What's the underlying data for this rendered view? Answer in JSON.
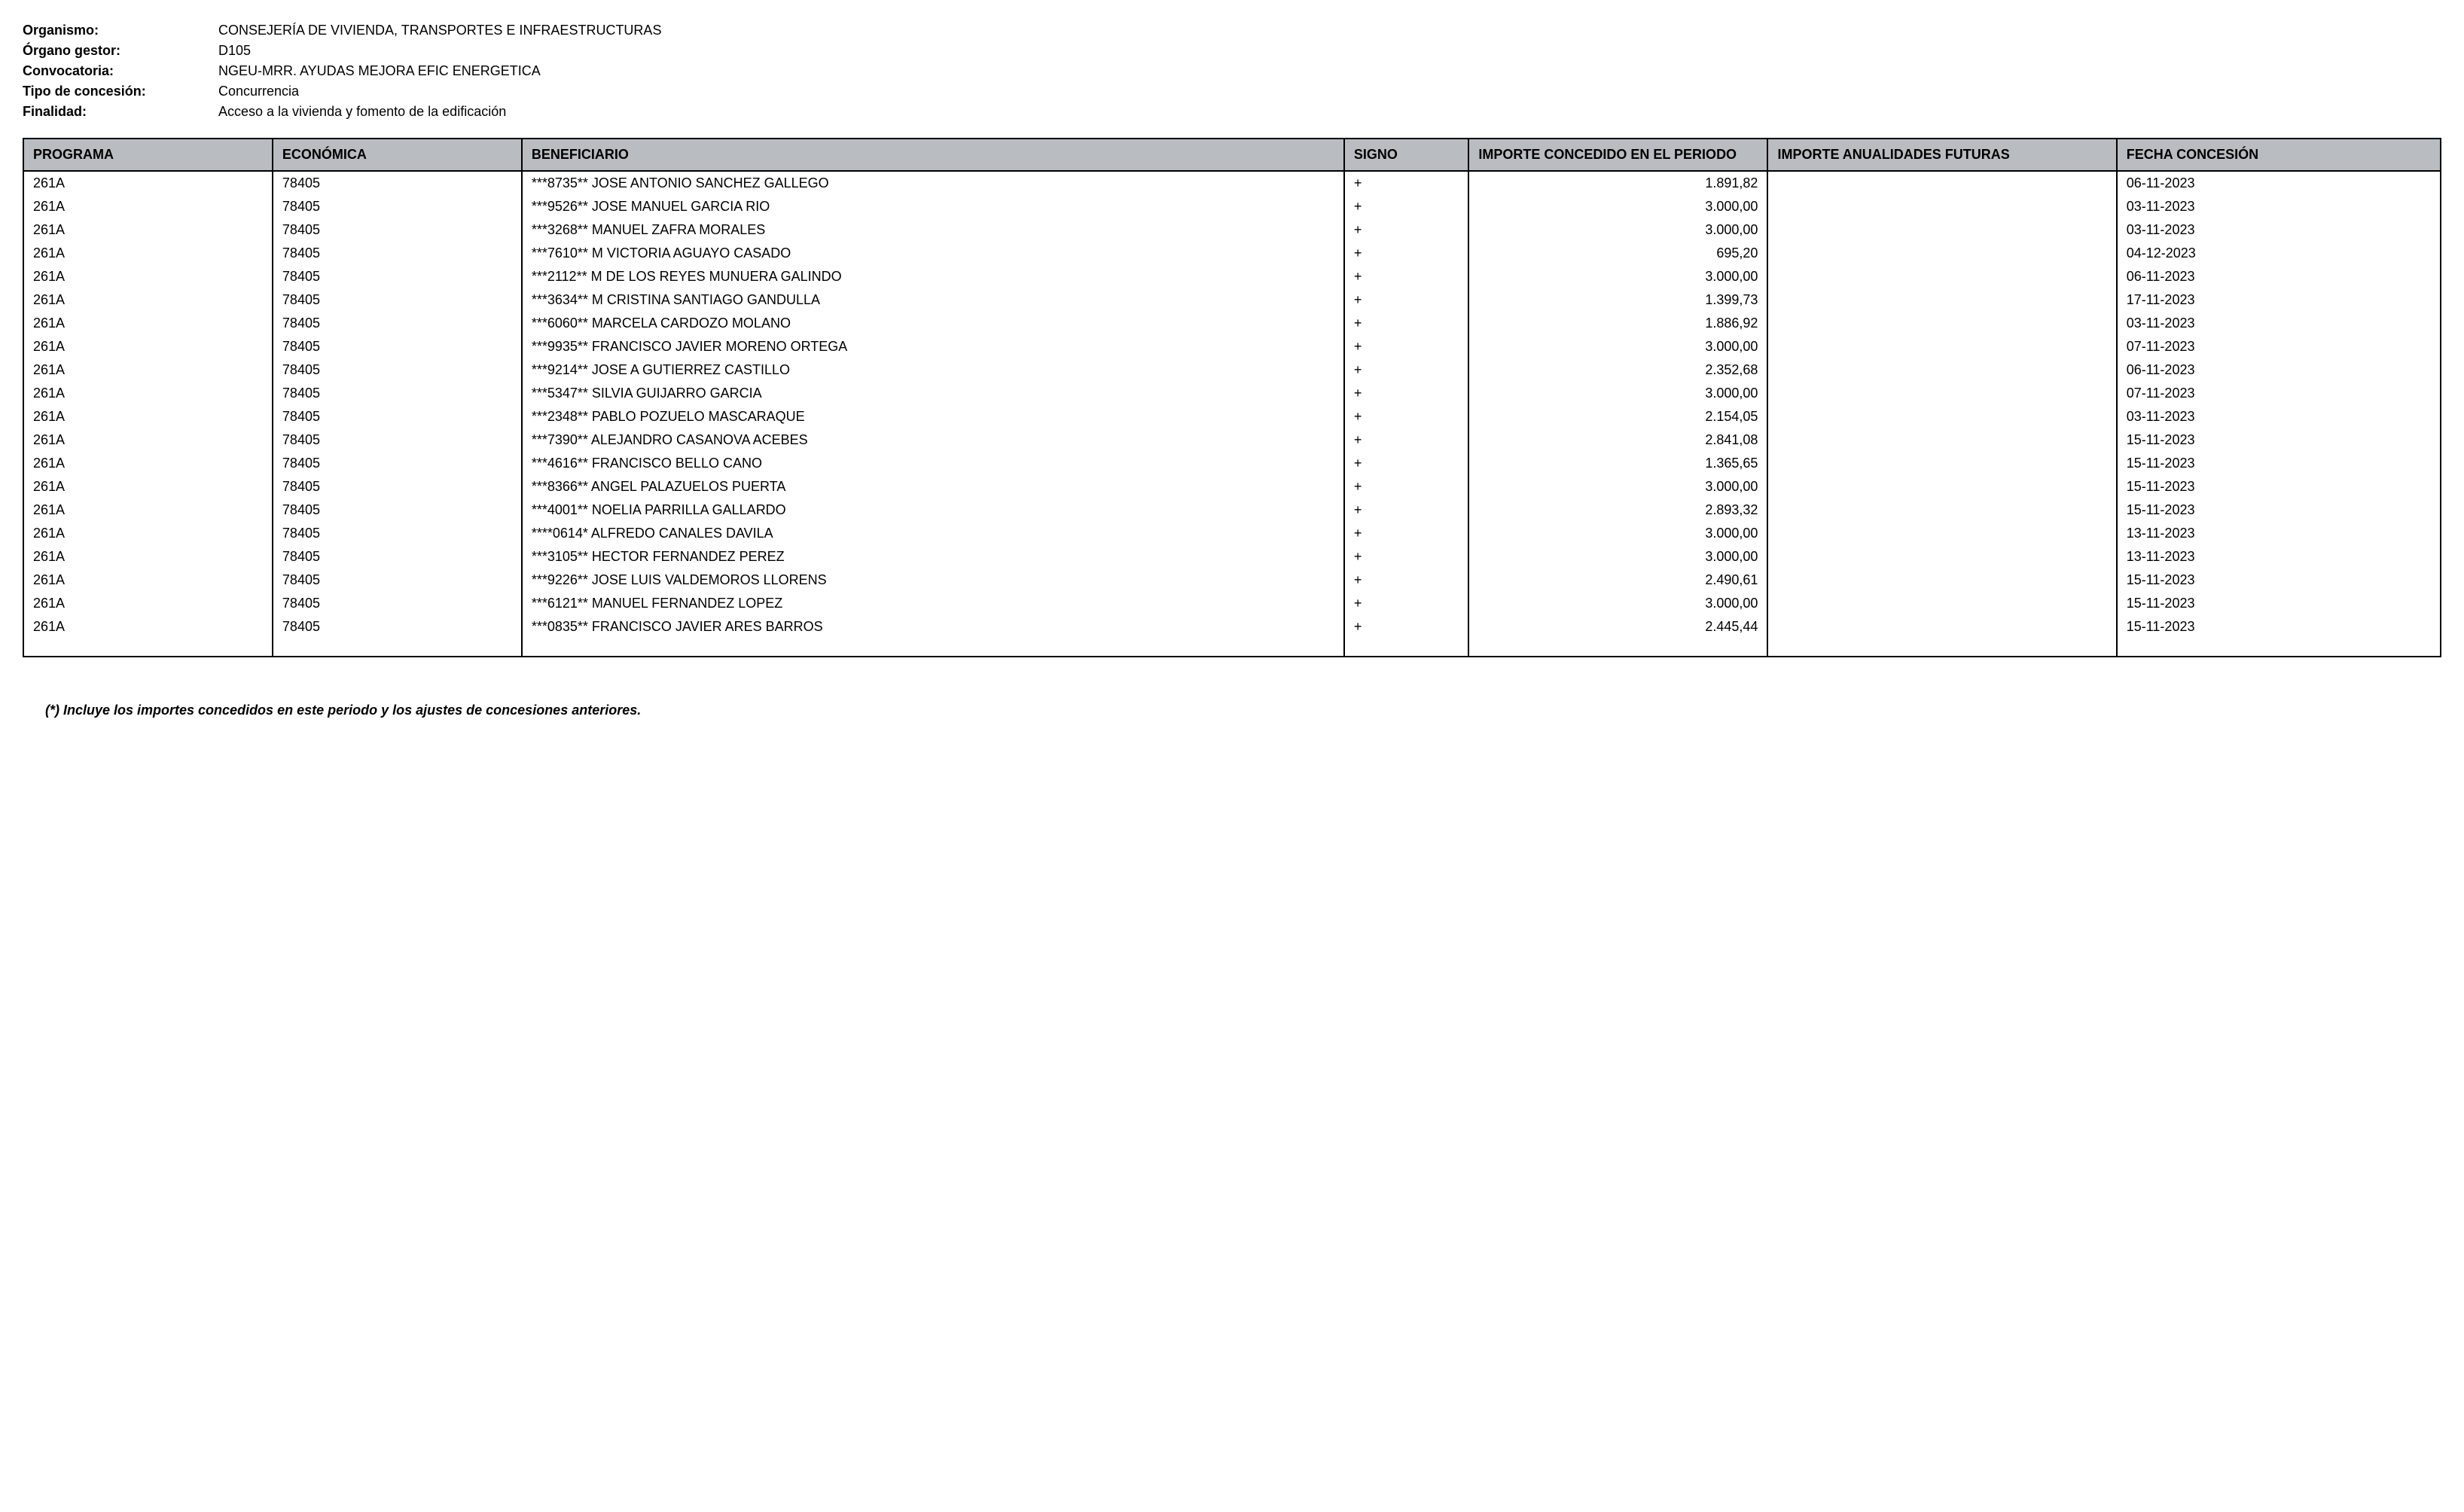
{
  "meta": {
    "organismo_label": "Organismo:",
    "organismo_value": "CONSEJERÍA DE VIVIENDA, TRANSPORTES E INFRAESTRUCTURAS",
    "organo_label": "Órgano gestor:",
    "organo_value": "D105",
    "convocatoria_label": "Convocatoria:",
    "convocatoria_value": "NGEU-MRR. AYUDAS MEJORA EFIC ENERGETICA",
    "tipo_label": "Tipo de concesión:",
    "tipo_value": "Concurrencia",
    "finalidad_label": "Finalidad:",
    "finalidad_value": "Acceso a la vivienda y fomento de la edificación"
  },
  "columns": {
    "programa": "PROGRAMA",
    "economica": "ECONÓMICA",
    "beneficiario": "BENEFICIARIO",
    "signo": "SIGNO",
    "importe_periodo": "IMPORTE CONCEDIDO EN EL PERIODO",
    "importe_futuras": "IMPORTE ANUALIDADES FUTURAS",
    "fecha": "FECHA CONCESIÓN"
  },
  "rows": [
    {
      "programa": "261A",
      "economica": "78405",
      "beneficiario": "***8735** JOSE ANTONIO SANCHEZ GALLEGO",
      "signo": "+",
      "importe_periodo": "1.891,82",
      "importe_futuras": "",
      "fecha": "06-11-2023"
    },
    {
      "programa": "261A",
      "economica": "78405",
      "beneficiario": "***9526** JOSE MANUEL GARCIA RIO",
      "signo": "+",
      "importe_periodo": "3.000,00",
      "importe_futuras": "",
      "fecha": "03-11-2023"
    },
    {
      "programa": "261A",
      "economica": "78405",
      "beneficiario": "***3268** MANUEL ZAFRA MORALES",
      "signo": "+",
      "importe_periodo": "3.000,00",
      "importe_futuras": "",
      "fecha": "03-11-2023"
    },
    {
      "programa": "261A",
      "economica": "78405",
      "beneficiario": "***7610** M VICTORIA AGUAYO CASADO",
      "signo": "+",
      "importe_periodo": "695,20",
      "importe_futuras": "",
      "fecha": "04-12-2023"
    },
    {
      "programa": "261A",
      "economica": "78405",
      "beneficiario": "***2112** M DE LOS REYES MUNUERA GALINDO",
      "signo": "+",
      "importe_periodo": "3.000,00",
      "importe_futuras": "",
      "fecha": "06-11-2023"
    },
    {
      "programa": "261A",
      "economica": "78405",
      "beneficiario": "***3634** M CRISTINA SANTIAGO GANDULLA",
      "signo": "+",
      "importe_periodo": "1.399,73",
      "importe_futuras": "",
      "fecha": "17-11-2023"
    },
    {
      "programa": "261A",
      "economica": "78405",
      "beneficiario": "***6060** MARCELA CARDOZO MOLANO",
      "signo": "+",
      "importe_periodo": "1.886,92",
      "importe_futuras": "",
      "fecha": "03-11-2023"
    },
    {
      "programa": "261A",
      "economica": "78405",
      "beneficiario": "***9935** FRANCISCO JAVIER MORENO ORTEGA",
      "signo": "+",
      "importe_periodo": "3.000,00",
      "importe_futuras": "",
      "fecha": "07-11-2023"
    },
    {
      "programa": "261A",
      "economica": "78405",
      "beneficiario": "***9214** JOSE A GUTIERREZ CASTILLO",
      "signo": "+",
      "importe_periodo": "2.352,68",
      "importe_futuras": "",
      "fecha": "06-11-2023"
    },
    {
      "programa": "261A",
      "economica": "78405",
      "beneficiario": "***5347** SILVIA GUIJARRO GARCIA",
      "signo": "+",
      "importe_periodo": "3.000,00",
      "importe_futuras": "",
      "fecha": "07-11-2023"
    },
    {
      "programa": "261A",
      "economica": "78405",
      "beneficiario": "***2348** PABLO POZUELO MASCARAQUE",
      "signo": "+",
      "importe_periodo": "2.154,05",
      "importe_futuras": "",
      "fecha": "03-11-2023"
    },
    {
      "programa": "261A",
      "economica": "78405",
      "beneficiario": "***7390** ALEJANDRO CASANOVA ACEBES",
      "signo": "+",
      "importe_periodo": "2.841,08",
      "importe_futuras": "",
      "fecha": "15-11-2023"
    },
    {
      "programa": "261A",
      "economica": "78405",
      "beneficiario": "***4616** FRANCISCO BELLO CANO",
      "signo": "+",
      "importe_periodo": "1.365,65",
      "importe_futuras": "",
      "fecha": "15-11-2023"
    },
    {
      "programa": "261A",
      "economica": "78405",
      "beneficiario": "***8366** ANGEL PALAZUELOS PUERTA",
      "signo": "+",
      "importe_periodo": "3.000,00",
      "importe_futuras": "",
      "fecha": "15-11-2023"
    },
    {
      "programa": "261A",
      "economica": "78405",
      "beneficiario": "***4001** NOELIA PARRILLA GALLARDO",
      "signo": "+",
      "importe_periodo": "2.893,32",
      "importe_futuras": "",
      "fecha": "15-11-2023"
    },
    {
      "programa": "261A",
      "economica": "78405",
      "beneficiario": "****0614* ALFREDO CANALES DAVILA",
      "signo": "+",
      "importe_periodo": "3.000,00",
      "importe_futuras": "",
      "fecha": "13-11-2023"
    },
    {
      "programa": "261A",
      "economica": "78405",
      "beneficiario": "***3105** HECTOR FERNANDEZ PEREZ",
      "signo": "+",
      "importe_periodo": "3.000,00",
      "importe_futuras": "",
      "fecha": "13-11-2023"
    },
    {
      "programa": "261A",
      "economica": "78405",
      "beneficiario": "***9226** JOSE LUIS VALDEMOROS LLORENS",
      "signo": "+",
      "importe_periodo": "2.490,61",
      "importe_futuras": "",
      "fecha": "15-11-2023"
    },
    {
      "programa": "261A",
      "economica": "78405",
      "beneficiario": "***6121** MANUEL FERNANDEZ LOPEZ",
      "signo": "+",
      "importe_periodo": "3.000,00",
      "importe_futuras": "",
      "fecha": "15-11-2023"
    },
    {
      "programa": "261A",
      "economica": "78405",
      "beneficiario": "***0835** FRANCISCO JAVIER ARES BARROS",
      "signo": "+",
      "importe_periodo": "2.445,44",
      "importe_futuras": "",
      "fecha": "15-11-2023"
    }
  ],
  "footnote": "(*) Incluye los importes concedidos en este periodo y los ajustes de concesiones anteriores."
}
